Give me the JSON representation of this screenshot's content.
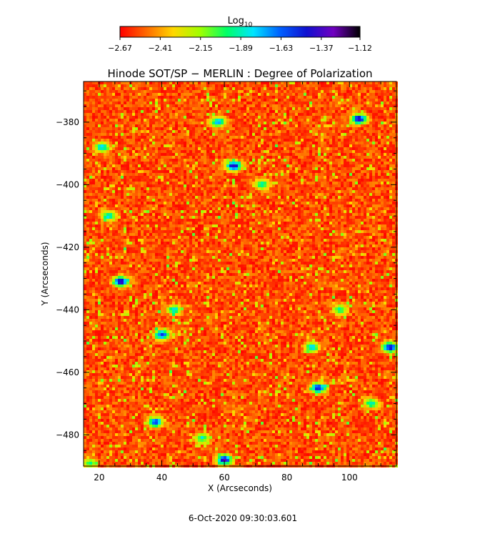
{
  "chart_data": {
    "type": "heatmap",
    "title": "Hinode SOT/SP − MERLIN : Degree of Polarization",
    "xlabel": "X (Arcseconds)",
    "ylabel": "Y (Arcseconds)",
    "xlim": [
      15,
      115
    ],
    "ylim": [
      -490,
      -367
    ],
    "x_ticks": [
      20,
      40,
      60,
      80,
      100
    ],
    "x_tick_labels": [
      "20",
      "40",
      "60",
      "80",
      "100"
    ],
    "y_ticks": [
      -380,
      -400,
      -420,
      -440,
      -460,
      -480
    ],
    "y_tick_labels": [
      "−380",
      "−400",
      "−420",
      "−440",
      "−460",
      "−480"
    ],
    "colorbar": {
      "label_main": "Log",
      "label_sub": "10",
      "min": -2.67,
      "max": -1.12,
      "ticks": [
        -2.67,
        -2.41,
        -2.15,
        -1.89,
        -1.63,
        -1.37,
        -1.12
      ],
      "tick_labels": [
        "−2.67",
        "−2.41",
        "−2.15",
        "−1.89",
        "−1.63",
        "−1.37",
        "−1.12"
      ],
      "colors": [
        "#ff0000",
        "#ff6a00",
        "#ffd700",
        "#a0ff00",
        "#00ff66",
        "#00e5ff",
        "#0060ff",
        "#1010d0",
        "#7000c0",
        "#000000"
      ]
    },
    "grid": false,
    "background_level": -2.55,
    "hotspots": [
      {
        "x": 63,
        "y": -394,
        "level": -1.3
      },
      {
        "x": 58,
        "y": -380,
        "level": -1.6
      },
      {
        "x": 103,
        "y": -379,
        "level": -1.3
      },
      {
        "x": 27,
        "y": -431,
        "level": -1.25
      },
      {
        "x": 40,
        "y": -448,
        "level": -1.45
      },
      {
        "x": 90,
        "y": -465,
        "level": -1.35
      },
      {
        "x": 38,
        "y": -476,
        "level": -1.45
      },
      {
        "x": 60,
        "y": -488,
        "level": -1.3
      },
      {
        "x": 113,
        "y": -452,
        "level": -1.3
      },
      {
        "x": 88,
        "y": -452,
        "level": -1.7
      },
      {
        "x": 44,
        "y": -440,
        "level": -1.75
      },
      {
        "x": 72,
        "y": -400,
        "level": -1.8
      },
      {
        "x": 21,
        "y": -388,
        "level": -1.7
      },
      {
        "x": 23,
        "y": -410,
        "level": -1.75
      },
      {
        "x": 53,
        "y": -481,
        "level": -1.8
      },
      {
        "x": 107,
        "y": -470,
        "level": -1.8
      },
      {
        "x": 17,
        "y": -489,
        "level": -1.9
      },
      {
        "x": 97,
        "y": -440,
        "level": -1.85
      }
    ]
  },
  "timestamp": "6-Oct-2020 09:30:03.601"
}
